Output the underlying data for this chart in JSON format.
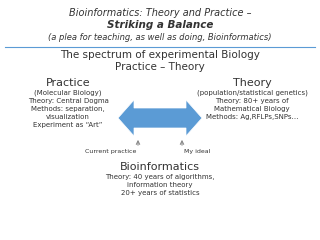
{
  "bg_color": "#ffffff",
  "title_line1": "Bioinformatics: Theory and Practice –",
  "title_line2": "Striking a Balance",
  "title_line3": "(a plea for teaching, as well as doing, Bioinformatics)",
  "section_line1": "The spectrum of experimental Biology",
  "section_line2": "Practice – Theory",
  "practice_title": "Practice",
  "practice_body": "(Molecular Biology)\nTheory: Central Dogma\nMethods: separation,\nvisualization\nExperiment as “Art”",
  "theory_title": "Theory",
  "theory_body": "(population/statistical genetics)\nTheory: 80+ years of\nMathematical Biology\nMethods: Ag,RFLPs,SNPs…",
  "label_left": "Current practice",
  "label_right": "My ideal",
  "bio_title": "Bioinformatics",
  "bio_body": "Theory: 40 years of algorithms,\ninformation theory\n20+ years of statistics",
  "arrow_color": "#5b9bd5",
  "divider_color": "#5b9bd5",
  "text_color": "#333333",
  "upward_arrow_color": "#888888"
}
